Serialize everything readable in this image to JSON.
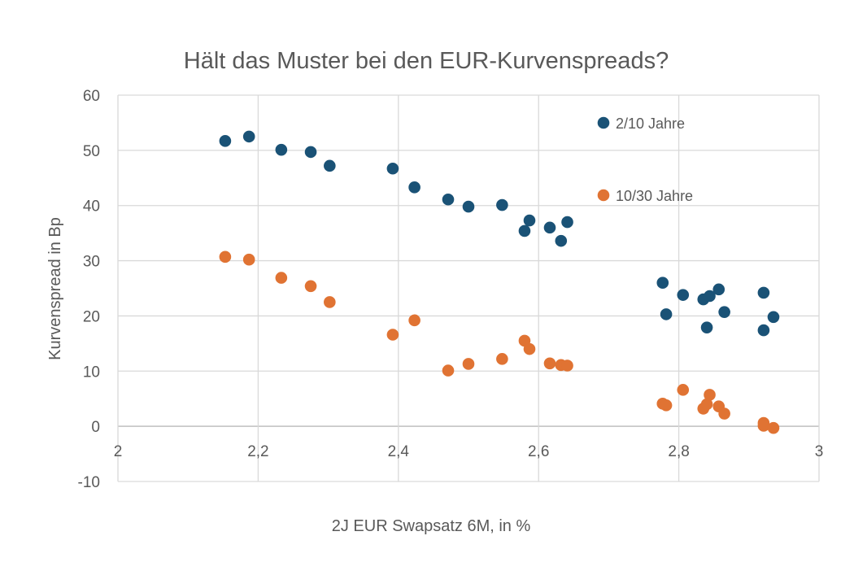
{
  "chart_data": {
    "type": "scatter",
    "title": "Hält das Muster bei den EUR-Kurvenspreads?",
    "xlabel": "2J EUR Swapsatz 6M, in %",
    "ylabel": "Kurvenspread in Bp",
    "xlim": [
      2,
      3
    ],
    "ylim": [
      -10,
      60
    ],
    "x_ticks": [
      2,
      2.2,
      2.4,
      2.6,
      2.8,
      3
    ],
    "x_tick_labels": [
      "2",
      "2,2",
      "2,4",
      "2,6",
      "2,8",
      "3"
    ],
    "y_ticks": [
      -10,
      0,
      10,
      20,
      30,
      40,
      50,
      60
    ],
    "y_tick_labels": [
      "-10",
      "0",
      "10",
      "20",
      "30",
      "40",
      "50",
      "60"
    ],
    "grid": true,
    "legend_position": "top-right",
    "series": [
      {
        "name": "2/10 Jahre",
        "color": "#1a5276",
        "points": [
          [
            2.153,
            51.7
          ],
          [
            2.187,
            52.5
          ],
          [
            2.233,
            50.1
          ],
          [
            2.275,
            49.7
          ],
          [
            2.302,
            47.2
          ],
          [
            2.392,
            46.7
          ],
          [
            2.423,
            43.3
          ],
          [
            2.471,
            41.1
          ],
          [
            2.5,
            39.8
          ],
          [
            2.548,
            40.1
          ],
          [
            2.58,
            35.4
          ],
          [
            2.587,
            37.3
          ],
          [
            2.616,
            36.0
          ],
          [
            2.632,
            33.6
          ],
          [
            2.641,
            37.0
          ],
          [
            2.777,
            26.0
          ],
          [
            2.782,
            20.3
          ],
          [
            2.806,
            23.8
          ],
          [
            2.835,
            23.0
          ],
          [
            2.84,
            17.9
          ],
          [
            2.844,
            23.6
          ],
          [
            2.857,
            24.8
          ],
          [
            2.865,
            20.7
          ],
          [
            2.921,
            24.2
          ],
          [
            2.921,
            17.4
          ],
          [
            2.935,
            19.8
          ]
        ]
      },
      {
        "name": "10/30 Jahre",
        "color": "#e07333",
        "points": [
          [
            2.153,
            30.7
          ],
          [
            2.187,
            30.2
          ],
          [
            2.233,
            26.9
          ],
          [
            2.275,
            25.4
          ],
          [
            2.302,
            22.5
          ],
          [
            2.392,
            16.6
          ],
          [
            2.423,
            19.2
          ],
          [
            2.471,
            10.1
          ],
          [
            2.5,
            11.3
          ],
          [
            2.548,
            12.2
          ],
          [
            2.58,
            15.5
          ],
          [
            2.587,
            14.0
          ],
          [
            2.616,
            11.4
          ],
          [
            2.632,
            11.1
          ],
          [
            2.641,
            11.0
          ],
          [
            2.777,
            4.1
          ],
          [
            2.782,
            3.8
          ],
          [
            2.806,
            6.6
          ],
          [
            2.835,
            3.2
          ],
          [
            2.84,
            4.0
          ],
          [
            2.844,
            5.7
          ],
          [
            2.857,
            3.6
          ],
          [
            2.865,
            2.3
          ],
          [
            2.921,
            0.6
          ],
          [
            2.921,
            0.1
          ],
          [
            2.935,
            -0.3
          ]
        ]
      }
    ]
  }
}
